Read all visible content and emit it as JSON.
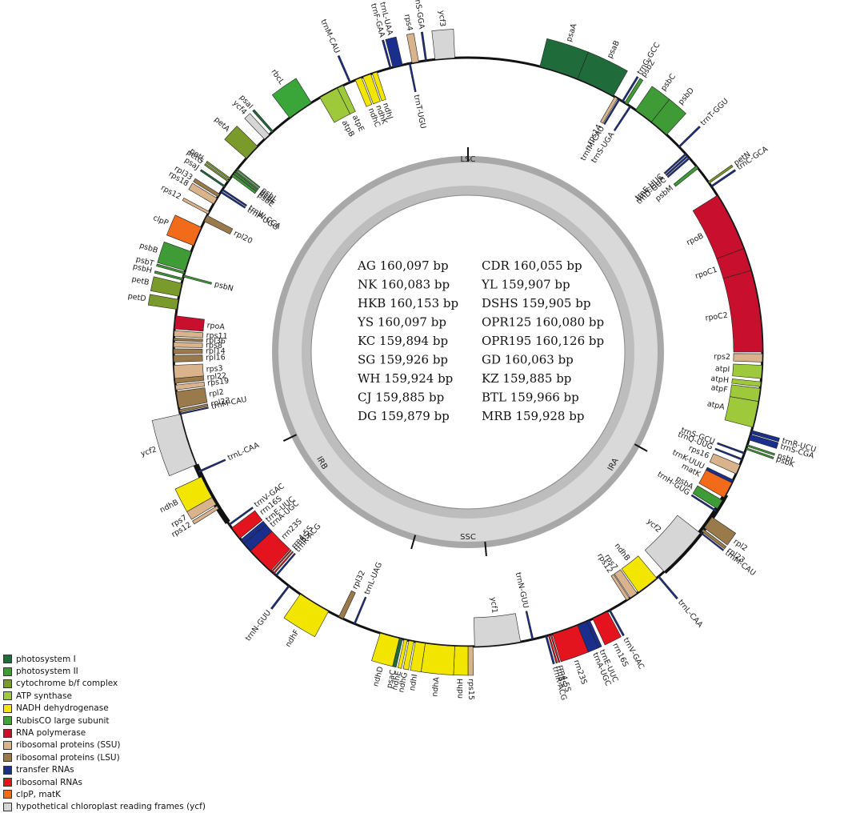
{
  "categories": [
    {
      "key": "psi",
      "label": "photosystem I",
      "color": "#1f6b3a"
    },
    {
      "key": "psii",
      "label": "photosystem II",
      "color": "#3e9b35"
    },
    {
      "key": "cytb",
      "label": "cytochrome b/f complex",
      "color": "#7a9a2c"
    },
    {
      "key": "atp",
      "label": "ATP synthase",
      "color": "#9ec93a"
    },
    {
      "key": "ndh",
      "label": "NADH dehydrogenase",
      "color": "#f2e600"
    },
    {
      "key": "rbcl",
      "label": "RubisCO large subunit",
      "color": "#3aa63a"
    },
    {
      "key": "rpo",
      "label": "RNA polymerase",
      "color": "#c8102e"
    },
    {
      "key": "ssu",
      "label": "ribosomal proteins (SSU)",
      "color": "#d9b38c"
    },
    {
      "key": "lsu",
      "label": "ribosomal proteins (LSU)",
      "color": "#9a7a4a"
    },
    {
      "key": "trna",
      "label": "transfer RNAs",
      "color": "#1a2f8c"
    },
    {
      "key": "rrna",
      "label": "ribosomal RNAs",
      "color": "#e3141e"
    },
    {
      "key": "clp",
      "label": "clpP, matK",
      "color": "#f26b1a"
    },
    {
      "key": "ycf",
      "label": "hypothetical chloroplast reading frames (ycf)",
      "color": "#d6d6d6"
    }
  ],
  "regions": {
    "lsc": "LSC",
    "ira": "IRA",
    "ssc": "SSC",
    "irb": "IRB"
  },
  "genomes": [
    [
      "AG 160,097 bp",
      "CDR 160,055 bp"
    ],
    [
      "NK 160,083 bp",
      "YL 159,907 bp"
    ],
    [
      "HKB 160,153 bp",
      "DSHS 159,905 bp"
    ],
    [
      "YS 160,097 bp",
      "OPR125 160,080 bp"
    ],
    [
      "KC 159,894 bp",
      "OPR195 160,126 bp"
    ],
    [
      "SG 159,926 bp",
      "GD 160,063 bp"
    ],
    [
      "WH 159,924 bp",
      "KZ 159,885 bp"
    ],
    [
      "CJ 159,885 bp",
      "BTL 159,966 bp"
    ],
    [
      "DG 159,879 bp",
      "MRB 159,928 bp"
    ]
  ],
  "genes": [
    {
      "name": "psaA",
      "cat": "psi",
      "start": 22,
      "end": 34,
      "side": "out"
    },
    {
      "name": "psaB",
      "cat": "psi",
      "start": 34,
      "end": 46,
      "side": "out"
    },
    {
      "name": "rps14",
      "cat": "ssu",
      "start": 46.5,
      "end": 47.5,
      "side": "in"
    },
    {
      "name": "trnfM-CAU",
      "cat": "trna",
      "start": 47.8,
      "end": 48.3,
      "side": "in"
    },
    {
      "name": "trnG-GCC",
      "cat": "trna",
      "start": 49,
      "end": 49.5,
      "side": "out"
    },
    {
      "name": "psbZ",
      "cat": "psii",
      "start": 50,
      "end": 51,
      "side": "out"
    },
    {
      "name": "trnS-UGA",
      "cat": "trna",
      "start": 51.8,
      "end": 52.3,
      "side": "in"
    },
    {
      "name": "psbC",
      "cat": "psii",
      "start": 54,
      "end": 60,
      "side": "out"
    },
    {
      "name": "psbD",
      "cat": "psii",
      "start": 60,
      "end": 66,
      "side": "out"
    },
    {
      "name": "trnT-GGU",
      "cat": "trna",
      "start": 71,
      "end": 71.5,
      "side": "out"
    },
    {
      "name": "trnE-UUC",
      "cat": "trna",
      "start": 74,
      "end": 74.5,
      "side": "in"
    },
    {
      "name": "trnY-GUA",
      "cat": "trna",
      "start": 74.8,
      "end": 75.3,
      "side": "in"
    },
    {
      "name": "trnD-GUC",
      "cat": "trna",
      "start": 75.6,
      "end": 76.1,
      "side": "in"
    },
    {
      "name": "psbM",
      "cat": "psii",
      "start": 79,
      "end": 80,
      "side": "in"
    },
    {
      "name": "petN",
      "cat": "cytb",
      "start": 85,
      "end": 85.6,
      "side": "out"
    },
    {
      "name": "trnC-GCA",
      "cat": "trna",
      "start": 86.5,
      "end": 87,
      "side": "out"
    },
    {
      "name": "rpoB",
      "cat": "rpo",
      "start": 90,
      "end": 108,
      "side": "in"
    },
    {
      "name": "rpoC1",
      "cat": "rpo",
      "start": 108,
      "end": 115,
      "side": "in"
    },
    {
      "name": "rpoC2",
      "cat": "rpo",
      "start": 115,
      "end": 140,
      "side": "in"
    },
    {
      "name": "rps2",
      "cat": "ssu",
      "start": 140.5,
      "end": 143,
      "side": "in"
    },
    {
      "name": "atpI",
      "cat": "atp",
      "start": 144,
      "end": 148,
      "side": "in"
    },
    {
      "name": "atpH",
      "cat": "atp",
      "start": 149,
      "end": 150.5,
      "side": "in"
    },
    {
      "name": "atpF",
      "cat": "atp",
      "start": 151,
      "end": 155,
      "side": "in"
    },
    {
      "name": "atpA",
      "cat": "atp",
      "start": 155,
      "end": 163,
      "side": "in"
    },
    {
      "name": "trnR-UCU",
      "cat": "trna",
      "start": 164,
      "end": 165,
      "side": "out"
    },
    {
      "name": "trnS-CGA",
      "cat": "trna",
      "start": 165.3,
      "end": 167,
      "side": "out"
    },
    {
      "name": "psbI",
      "cat": "psii",
      "start": 168.5,
      "end": 169,
      "side": "out"
    },
    {
      "name": "psbK",
      "cat": "psii",
      "start": 169.5,
      "end": 170,
      "side": "out"
    },
    {
      "name": "trnS-GCU",
      "cat": "trna",
      "start": 171,
      "end": 171.5,
      "side": "in"
    },
    {
      "name": "trnQ-UUG",
      "cat": "trna",
      "start": 173,
      "end": 173.5,
      "side": "in"
    },
    {
      "name": "rps16",
      "cat": "ssu",
      "start": 175,
      "end": 178,
      "side": "in"
    },
    {
      "name": "trnK-UUU",
      "cat": "trna",
      "start": 180,
      "end": 181,
      "side": "in"
    },
    {
      "name": "matK",
      "cat": "clp",
      "start": 181,
      "end": 186,
      "side": "in"
    },
    {
      "name": "psbA",
      "cat": "psii",
      "start": 187,
      "end": 190,
      "side": "in"
    },
    {
      "name": "trnH-GUG",
      "cat": "trna",
      "start": 190.5,
      "end": 191,
      "side": "in"
    },
    {
      "name": "rpl2",
      "cat": "lsu",
      "start": 193,
      "end": 197,
      "side": "out"
    },
    {
      "name": "rpl23",
      "cat": "lsu",
      "start": 197.5,
      "end": 198.3,
      "side": "out"
    },
    {
      "name": "trnM-CAU",
      "cat": "trna",
      "start": 198.6,
      "end": 199,
      "side": "out"
    },
    {
      "name": "ycf2",
      "cat": "ycf",
      "start": 199,
      "end": 215,
      "side": "in"
    },
    {
      "name": "trnL-CAA",
      "cat": "trna",
      "start": 217,
      "end": 217.5,
      "side": "out"
    },
    {
      "name": "ndhB",
      "cat": "ndh",
      "start": 218,
      "end": 225,
      "side": "in"
    },
    {
      "name": "rps7",
      "cat": "ssu",
      "start": 225.5,
      "end": 228,
      "side": "in"
    },
    {
      "name": "rps12",
      "cat": "ssu",
      "start": 228.3,
      "end": 229.3,
      "side": "in"
    },
    {
      "name": "trnV-GAC",
      "cat": "trna",
      "start": 235,
      "end": 235.5,
      "side": "out"
    },
    {
      "name": "rrn16S",
      "cat": "rrna",
      "start": 236,
      "end": 241,
      "side": "out"
    },
    {
      "name": "trnE-UUC",
      "cat": "trna",
      "start": 242,
      "end": 243,
      "side": "out"
    },
    {
      "name": "trnA-UGC",
      "cat": "trna",
      "start": 243,
      "end": 246,
      "side": "out"
    },
    {
      "name": "rrn23S",
      "cat": "rrna",
      "start": 246,
      "end": 254,
      "side": "out"
    },
    {
      "name": "rrn4.5S",
      "cat": "rrna",
      "start": 254.3,
      "end": 254.7,
      "side": "out"
    },
    {
      "name": "rrn5S",
      "cat": "rrna",
      "start": 255,
      "end": 255.4,
      "side": "out"
    },
    {
      "name": "trnR-ACG",
      "cat": "trna",
      "start": 255.8,
      "end": 256.3,
      "side": "out"
    },
    {
      "name": "trnN-GUU",
      "cat": "trna",
      "start": 260,
      "end": 260.5,
      "side": "in"
    },
    {
      "name": "ycf1",
      "cat": "ycf",
      "start": 264,
      "end": 278,
      "side": "in"
    },
    {
      "name": "rps15",
      "cat": "ssu",
      "start": 278.5,
      "end": 280,
      "side": "out"
    },
    {
      "name": "ndhH",
      "cat": "ndh",
      "start": 280,
      "end": 284,
      "side": "out"
    },
    {
      "name": "ndhA",
      "cat": "ndh",
      "start": 284,
      "end": 293,
      "side": "out"
    },
    {
      "name": "ndhI",
      "cat": "ndh",
      "start": 293,
      "end": 296,
      "side": "out"
    },
    {
      "name": "ndhG",
      "cat": "ndh",
      "start": 296.5,
      "end": 298,
      "side": "out"
    },
    {
      "name": "ndhE",
      "cat": "ndh",
      "start": 298.5,
      "end": 299.5,
      "side": "out"
    },
    {
      "name": "psaC",
      "cat": "psi",
      "start": 300,
      "end": 301,
      "side": "out"
    },
    {
      "name": "ndhD",
      "cat": "ndh",
      "start": 301,
      "end": 307,
      "side": "out"
    },
    {
      "name": "trnL-UAG",
      "cat": "trna",
      "start": 315,
      "end": 315.5,
      "side": "in"
    },
    {
      "name": "rpl32",
      "cat": "lsu",
      "start": 319,
      "end": 320.5,
      "side": "in"
    },
    {
      "name": "ndhF",
      "cat": "ndh",
      "start": 324,
      "end": 334,
      "side": "out"
    },
    {
      "name": "trnN-GUU",
      "cat": "trna",
      "start": 338,
      "end": 338.5,
      "side": "out"
    },
    {
      "name": "trnR-ACG",
      "cat": "trna",
      "start": 343,
      "end": 343.5,
      "side": "in"
    },
    {
      "name": "rrn5S",
      "cat": "rrna",
      "start": 344,
      "end": 344.4,
      "side": "in"
    },
    {
      "name": "rrn4.5S",
      "cat": "rrna",
      "start": 344.8,
      "end": 345.2,
      "side": "in"
    },
    {
      "name": "rrn23S",
      "cat": "rrna",
      "start": 345.5,
      "end": 354,
      "side": "in"
    },
    {
      "name": "trnA-UGC",
      "cat": "trna",
      "start": 354,
      "end": 357,
      "side": "in"
    },
    {
      "name": "trnE-UUC",
      "cat": "trna",
      "start": 357,
      "end": 358.5,
      "side": "in"
    },
    {
      "name": "rrn16S",
      "cat": "rrna",
      "start": 359,
      "end": 363,
      "side": "in"
    },
    {
      "name": "trnV-GAC",
      "cat": "trna",
      "start": 364,
      "end": 364.5,
      "side": "in"
    },
    {
      "name": "rps12",
      "cat": "ssu",
      "start": 370,
      "end": 371,
      "side": "out"
    },
    {
      "name": "rps7",
      "cat": "ssu",
      "start": 371.5,
      "end": 374,
      "side": "out"
    },
    {
      "name": "ndhB",
      "cat": "ndh",
      "start": 374,
      "end": 381,
      "side": "out"
    },
    {
      "name": "trnL-CAA",
      "cat": "trna",
      "start": 382.5,
      "end": 383,
      "side": "in"
    },
    {
      "name": "ycf2",
      "cat": "ycf",
      "start": 385,
      "end": 401,
      "side": "out"
    },
    {
      "name": "trnM-CAU",
      "cat": "trna",
      "start": 401,
      "end": 401.4,
      "side": "in"
    },
    {
      "name": "rpl23",
      "cat": "lsu",
      "start": 401.7,
      "end": 402.5,
      "side": "in"
    },
    {
      "name": "rpl2",
      "cat": "lsu",
      "start": 403,
      "end": 408,
      "side": "in"
    },
    {
      "name": "rps19",
      "cat": "ssu",
      "start": 408.5,
      "end": 410,
      "side": "in"
    },
    {
      "name": "rpl22",
      "cat": "lsu",
      "start": 410.5,
      "end": 412,
      "side": "in"
    },
    {
      "name": "rps3",
      "cat": "ssu",
      "start": 412,
      "end": 416,
      "side": "in"
    },
    {
      "name": "rpl16",
      "cat": "lsu",
      "start": 417,
      "end": 419,
      "side": "in"
    },
    {
      "name": "rpl14",
      "cat": "lsu",
      "start": 419.5,
      "end": 421,
      "side": "in"
    },
    {
      "name": "rps8",
      "cat": "ssu",
      "start": 421.5,
      "end": 423,
      "side": "in"
    },
    {
      "name": "rpl36",
      "cat": "lsu",
      "start": 423.5,
      "end": 424.3,
      "side": "in"
    },
    {
      "name": "rps11",
      "cat": "ssu",
      "start": 424.8,
      "end": 426.5,
      "side": "in"
    },
    {
      "name": "rpoA",
      "cat": "rpo",
      "start": 427,
      "end": 431,
      "side": "in"
    },
    {
      "name": "petD",
      "cat": "cytb",
      "start": 433,
      "end": 436,
      "side": "out"
    },
    {
      "name": "petB",
      "cat": "cytb",
      "start": 437,
      "end": 441,
      "side": "out"
    },
    {
      "name": "psbH",
      "cat": "psii",
      "start": 442,
      "end": 442.6,
      "side": "out"
    },
    {
      "name": "psbN",
      "cat": "psii",
      "start": 443,
      "end": 443.6,
      "side": "in"
    },
    {
      "name": "psbT",
      "cat": "psii",
      "start": 444,
      "end": 444.6,
      "side": "out"
    },
    {
      "name": "psbB",
      "cat": "psii",
      "start": 445,
      "end": 451,
      "side": "out"
    },
    {
      "name": "clpP",
      "cat": "clp",
      "start": 453,
      "end": 459,
      "side": "out"
    },
    {
      "name": "rpl20",
      "cat": "lsu",
      "start": 461,
      "end": 463,
      "side": "in"
    },
    {
      "name": "rps12",
      "cat": "ssu",
      "start": 463.5,
      "end": 464.3,
      "side": "out"
    },
    {
      "name": "rps18",
      "cat": "ssu",
      "start": 467,
      "end": 469,
      "side": "out"
    },
    {
      "name": "rpl33",
      "cat": "lsu",
      "start": 469.5,
      "end": 470.5,
      "side": "out"
    },
    {
      "name": "trnP-UGG",
      "cat": "trna",
      "start": 471,
      "end": 471.5,
      "side": "in"
    },
    {
      "name": "trnW-CCA",
      "cat": "trna",
      "start": 471.8,
      "end": 472.3,
      "side": "in"
    },
    {
      "name": "psaJ",
      "cat": "psi",
      "start": 473,
      "end": 473.5,
      "side": "out"
    },
    {
      "name": "petG",
      "cat": "cytb",
      "start": 475,
      "end": 475.5,
      "side": "out"
    },
    {
      "name": "petL",
      "cat": "cytb",
      "start": 475.8,
      "end": 476.3,
      "side": "out"
    },
    {
      "name": "psbE",
      "cat": "psii",
      "start": 477,
      "end": 477.8,
      "side": "in"
    },
    {
      "name": "psbF",
      "cat": "psii",
      "start": 478,
      "end": 478.5,
      "side": "in"
    },
    {
      "name": "psbL",
      "cat": "psii",
      "start": 478.7,
      "end": 479.1,
      "side": "in"
    },
    {
      "name": "psbJ",
      "cat": "psii",
      "start": 479.4,
      "end": 479.8,
      "side": "in"
    },
    {
      "name": "petA",
      "cat": "cytb",
      "start": 484,
      "end": 489,
      "side": "out"
    },
    {
      "name": "ycf4",
      "cat": "ycf",
      "start": 492,
      "end": 494,
      "side": "out"
    },
    {
      "name": "psaI",
      "cat": "psi",
      "start": 495,
      "end": 495.6,
      "side": "out"
    },
    {
      "name": "rbcL",
      "cat": "rbcl",
      "start": 502,
      "end": 510,
      "side": "out"
    },
    {
      "name": "atpB",
      "cat": "atp",
      "start": 513,
      "end": 519,
      "side": "in"
    },
    {
      "name": "atpE",
      "cat": "atp",
      "start": 519,
      "end": 521,
      "side": "in"
    },
    {
      "name": "trnM-CAU",
      "cat": "trna",
      "start": 523,
      "end": 523.5,
      "side": "out"
    },
    {
      "name": "ndhC",
      "cat": "ndh",
      "start": 525,
      "end": 527,
      "side": "in"
    },
    {
      "name": "ndhK",
      "cat": "ndh",
      "start": 527.5,
      "end": 530,
      "side": "in"
    },
    {
      "name": "ndhJ",
      "cat": "ndh",
      "start": 530.5,
      "end": 532,
      "side": "in"
    },
    {
      "name": "trnF-GAA",
      "cat": "trna",
      "start": 536,
      "end": 536.5,
      "side": "out"
    },
    {
      "name": "trnL-UAA",
      "cat": "trna",
      "start": 537,
      "end": 540,
      "side": "out"
    },
    {
      "name": "trnT-UGU",
      "cat": "trna",
      "start": 542,
      "end": 542.5,
      "side": "in"
    },
    {
      "name": "rps4",
      "cat": "ssu",
      "start": 543,
      "end": 545,
      "side": "out"
    },
    {
      "name": "trnS-GGA",
      "cat": "trna",
      "start": 547,
      "end": 547.5,
      "side": "out"
    },
    {
      "name": "ycf3",
      "cat": "ycf",
      "start": 550,
      "end": 556,
      "side": "out"
    }
  ]
}
